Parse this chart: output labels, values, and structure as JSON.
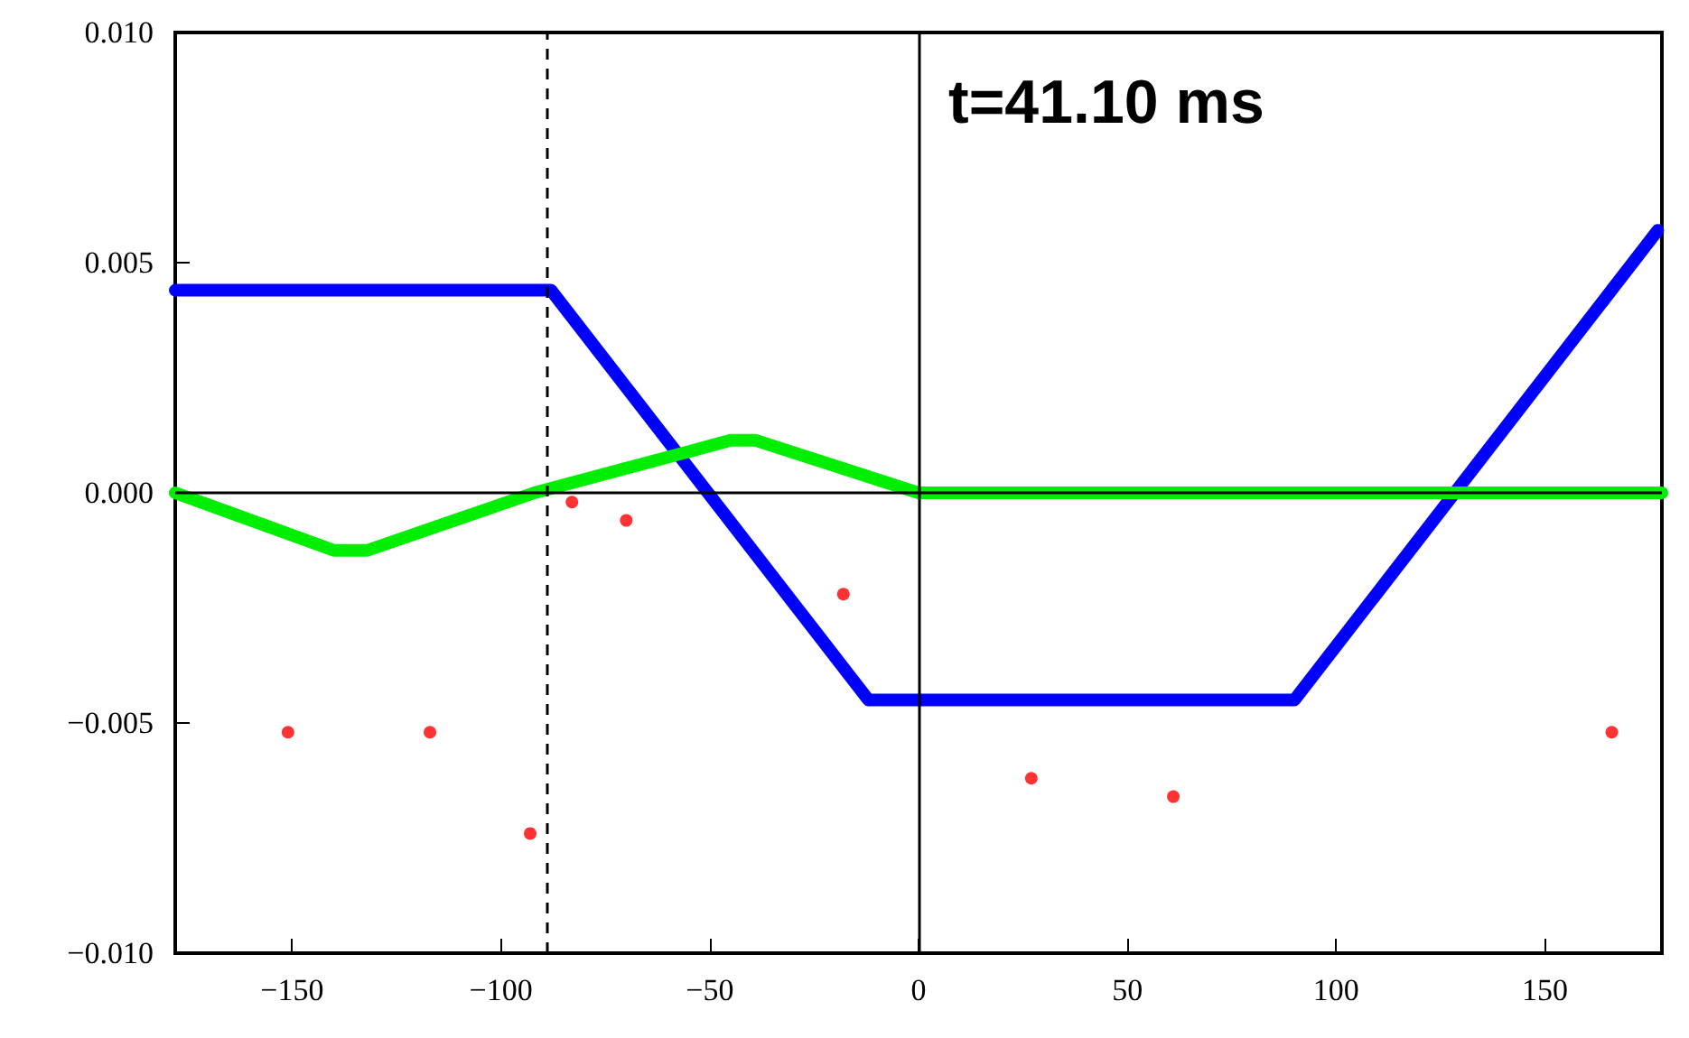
{
  "chart_data": {
    "type": "line",
    "annotations": [
      "t=41.10 ms"
    ],
    "xlim": [
      -178,
      178
    ],
    "xticks": [
      {
        "value": -150,
        "label": "−150"
      },
      {
        "value": -100,
        "label": "−100"
      },
      {
        "value": -50,
        "label": "−50"
      },
      0,
      50,
      100,
      150
    ],
    "ylim": [
      -0.01,
      0.01
    ],
    "yticks": [
      {
        "value": -0.01,
        "label": "−0.010"
      },
      {
        "value": -0.005,
        "label": "−0.005"
      },
      {
        "value": 0,
        "label": "0.000"
      },
      {
        "value": 0.005,
        "label": "0.005"
      },
      {
        "value": 0.01,
        "label": "0.010"
      }
    ],
    "grid": false,
    "series": [
      {
        "color": "#0000ff",
        "marker": "none",
        "x": [
          -178,
          -88,
          -12,
          90,
          177
        ],
        "values": [
          0.0044,
          0.0044,
          -0.0045,
          -0.0045,
          0.0057
        ]
      },
      {
        "color": "#00ee00",
        "marker": "none",
        "x": [
          -178,
          -140,
          -132,
          -92,
          -45,
          -39,
          0,
          178
        ],
        "values": [
          0,
          -0.00125,
          -0.00125,
          0,
          0.00114,
          0.00114,
          0,
          0
        ]
      },
      {
        "type": "scatter",
        "color": "#ff0000",
        "marker": "circle",
        "x": [
          -151,
          -117,
          -93,
          -83,
          -70,
          -18,
          27,
          61,
          166
        ],
        "values": [
          -0.0052,
          -0.0052,
          -0.0074,
          -0.0002,
          -0.0006,
          -0.0022,
          -0.0062,
          -0.0066,
          -0.0052
        ]
      }
    ],
    "ref_lines": [
      {
        "axis": "x",
        "value": -89,
        "line_style": "dashed"
      },
      {
        "axis": "x",
        "value": 0,
        "line_style": "solid"
      },
      {
        "axis": "y",
        "value": 0,
        "line_style": "solid"
      }
    ]
  }
}
